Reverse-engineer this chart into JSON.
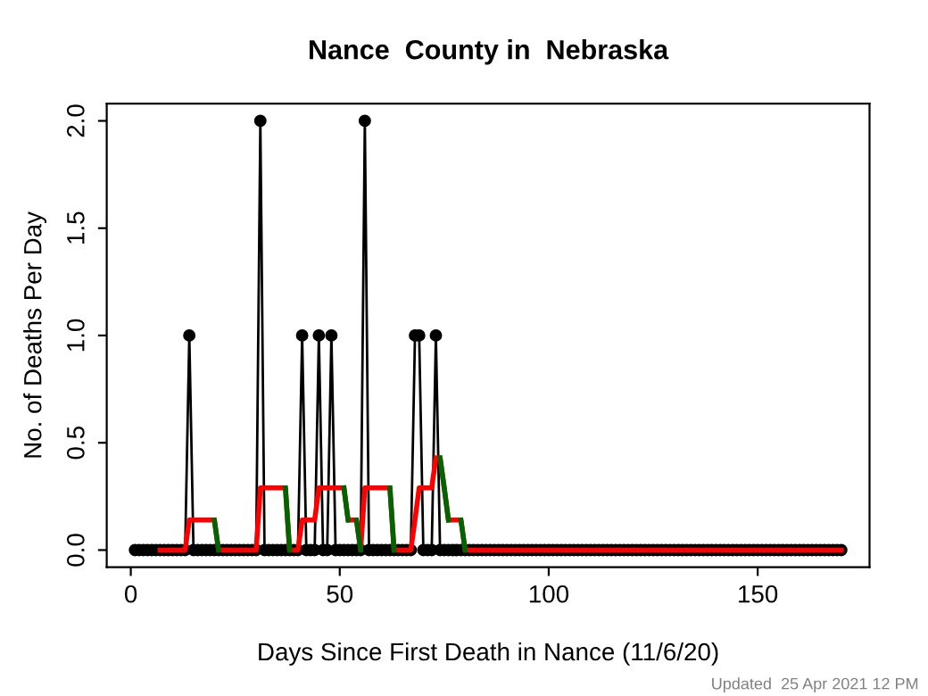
{
  "chart_data": {
    "type": "line",
    "title": "Nance  County in  Nebraska",
    "xlabel": "Days Since First Death in Nance (11/6/20)",
    "ylabel": "No. of Deaths Per Day",
    "annotations": [
      "Updated  25 Apr 2021 12 PM"
    ],
    "xlim": [
      -5.76,
      176.76
    ],
    "ylim": [
      -0.08,
      2.08
    ],
    "xticks": [
      0,
      50,
      100,
      150
    ],
    "yticks": [
      {
        "value": 0,
        "label": "0.0"
      },
      {
        "value": 0.5,
        "label": "0.5"
      },
      {
        "value": 1,
        "label": "1.0"
      },
      {
        "value": 1.5,
        "label": "1.5"
      },
      {
        "value": 2,
        "label": "2.0"
      }
    ],
    "grid": false,
    "legend": false,
    "x": [
      1,
      2,
      3,
      4,
      5,
      6,
      7,
      8,
      9,
      10,
      11,
      12,
      13,
      14,
      15,
      16,
      17,
      18,
      19,
      20,
      21,
      22,
      23,
      24,
      25,
      26,
      27,
      28,
      29,
      30,
      31,
      32,
      33,
      34,
      35,
      36,
      37,
      38,
      39,
      40,
      41,
      42,
      43,
      44,
      45,
      46,
      47,
      48,
      49,
      50,
      51,
      52,
      53,
      54,
      55,
      56,
      57,
      58,
      59,
      60,
      61,
      62,
      63,
      64,
      65,
      66,
      67,
      68,
      69,
      70,
      71,
      72,
      73,
      74,
      75,
      76,
      77,
      78,
      79,
      80,
      81,
      82,
      83,
      84,
      85,
      86,
      87,
      88,
      89,
      90,
      91,
      92,
      93,
      94,
      95,
      96,
      97,
      98,
      99,
      100,
      101,
      102,
      103,
      104,
      105,
      106,
      107,
      108,
      109,
      110,
      111,
      112,
      113,
      114,
      115,
      116,
      117,
      118,
      119,
      120,
      121,
      122,
      123,
      124,
      125,
      126,
      127,
      128,
      129,
      130,
      131,
      132,
      133,
      134,
      135,
      136,
      137,
      138,
      139,
      140,
      141,
      142,
      143,
      144,
      145,
      146,
      147,
      148,
      149,
      150,
      151,
      152,
      153,
      154,
      155,
      156,
      157,
      158,
      159,
      160,
      161,
      162,
      163,
      164,
      165,
      166,
      167,
      168,
      169,
      170
    ],
    "series": [
      {
        "color": "#000000",
        "marker": "circle",
        "values": [
          0,
          0,
          0,
          0,
          0,
          0,
          0,
          0,
          0,
          0,
          0,
          0,
          0,
          1,
          0,
          0,
          0,
          0,
          0,
          0,
          0,
          0,
          0,
          0,
          0,
          0,
          0,
          0,
          0,
          0,
          2,
          0,
          0,
          0,
          0,
          0,
          0,
          0,
          0,
          0,
          1,
          0,
          0,
          0,
          1,
          0,
          0,
          1,
          0,
          0,
          0,
          0,
          0,
          0,
          0,
          2,
          0,
          0,
          0,
          0,
          0,
          0,
          0,
          0,
          0,
          0,
          0,
          1,
          1,
          0,
          0,
          0,
          1,
          0,
          0,
          0,
          0,
          0,
          0,
          0,
          0,
          0,
          0,
          0,
          0,
          0,
          0,
          0,
          0,
          0,
          0,
          0,
          0,
          0,
          0,
          0,
          0,
          0,
          0,
          0,
          0,
          0,
          0,
          0,
          0,
          0,
          0,
          0,
          0,
          0,
          0,
          0,
          0,
          0,
          0,
          0,
          0,
          0,
          0,
          0,
          0,
          0,
          0,
          0,
          0,
          0,
          0,
          0,
          0,
          0,
          0,
          0,
          0,
          0,
          0,
          0,
          0,
          0,
          0,
          0,
          0,
          0,
          0,
          0,
          0,
          0,
          0,
          0,
          0,
          0,
          0,
          0,
          0,
          0,
          0,
          0,
          0,
          0,
          0,
          0,
          0,
          0,
          0,
          0,
          0,
          0,
          0,
          0,
          0,
          0
        ]
      },
      {
        "color": "#ff0000",
        "marker": "none",
        "x": [
          7,
          8,
          9,
          10,
          11,
          12,
          13,
          14,
          15,
          16,
          17,
          18,
          19,
          20,
          21,
          22,
          23,
          24,
          25,
          26,
          27,
          28,
          29,
          30,
          31,
          32,
          33,
          34,
          35,
          36,
          37,
          38,
          39,
          40,
          41,
          42,
          43,
          44,
          45,
          46,
          47,
          48,
          49,
          50,
          51,
          52,
          53,
          54,
          55,
          56,
          57,
          58,
          59,
          60,
          61,
          62,
          63,
          64,
          65,
          66,
          67,
          68,
          69,
          70,
          71,
          72,
          73,
          74,
          75,
          76,
          77,
          78,
          79,
          80,
          170
        ],
        "values": [
          0,
          0,
          0,
          0,
          0,
          0,
          0,
          0.14,
          0.14,
          0.14,
          0.14,
          0.14,
          0.14,
          0.14,
          0,
          0,
          0,
          0,
          0,
          0,
          0,
          0,
          0,
          0,
          0.29,
          0.29,
          0.29,
          0.29,
          0.29,
          0.29,
          0.29,
          0,
          0,
          0,
          0.14,
          0.14,
          0.14,
          0.14,
          0.29,
          0.29,
          0.29,
          0.29,
          0.29,
          0.29,
          0.29,
          0.14,
          0.14,
          0.14,
          0,
          0.29,
          0.29,
          0.29,
          0.29,
          0.29,
          0.29,
          0.29,
          0,
          0,
          0,
          0,
          0,
          0.14,
          0.29,
          0.29,
          0.29,
          0.29,
          0.43,
          0.43,
          0.29,
          0.14,
          0.14,
          0.14,
          0.14,
          0,
          0
        ]
      },
      {
        "color": "#006400",
        "marker": "none",
        "x": [
          20,
          21,
          22,
          37,
          38,
          39,
          51,
          52,
          53,
          54,
          55,
          56,
          62,
          63,
          64,
          74,
          75,
          76,
          77,
          79,
          80
        ],
        "values": [
          0.14,
          0,
          null,
          0.29,
          0,
          null,
          0.29,
          0.14,
          null,
          0.14,
          0,
          null,
          0.29,
          0,
          null,
          0.43,
          0.29,
          0.14,
          null,
          0.14,
          0
        ]
      }
    ]
  }
}
